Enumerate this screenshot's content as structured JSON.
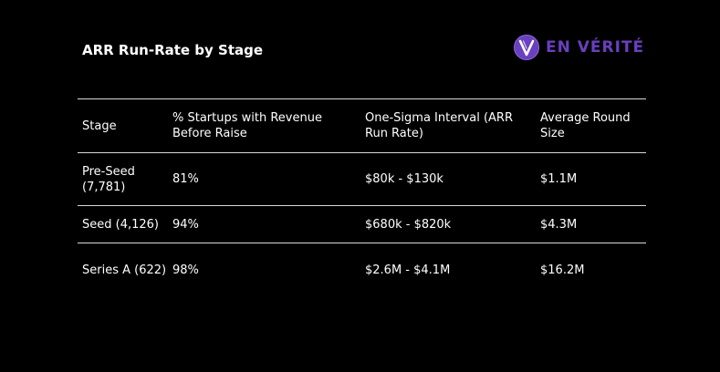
{
  "title": "ARR Run-Rate by Stage",
  "brand": {
    "name": "EN VÉRITÉ",
    "logo_icon": "v-circle-logo-icon",
    "color": "#6a3fc0"
  },
  "table": {
    "headers": [
      "Stage",
      "% Startups with Revenue Before Raise",
      "One-Sigma Interval (ARR Run Rate)",
      "Average Round Size"
    ],
    "rows": [
      [
        "Pre-Seed (7,781)",
        "81%",
        "$80k - $130k",
        "$1.1M"
      ],
      [
        "Seed (4,126)",
        "94%",
        "$680k - $820k",
        "$4.3M"
      ],
      [
        "Series A (622)",
        "98%",
        "$2.6M - $4.1M",
        "$16.2M"
      ]
    ]
  }
}
